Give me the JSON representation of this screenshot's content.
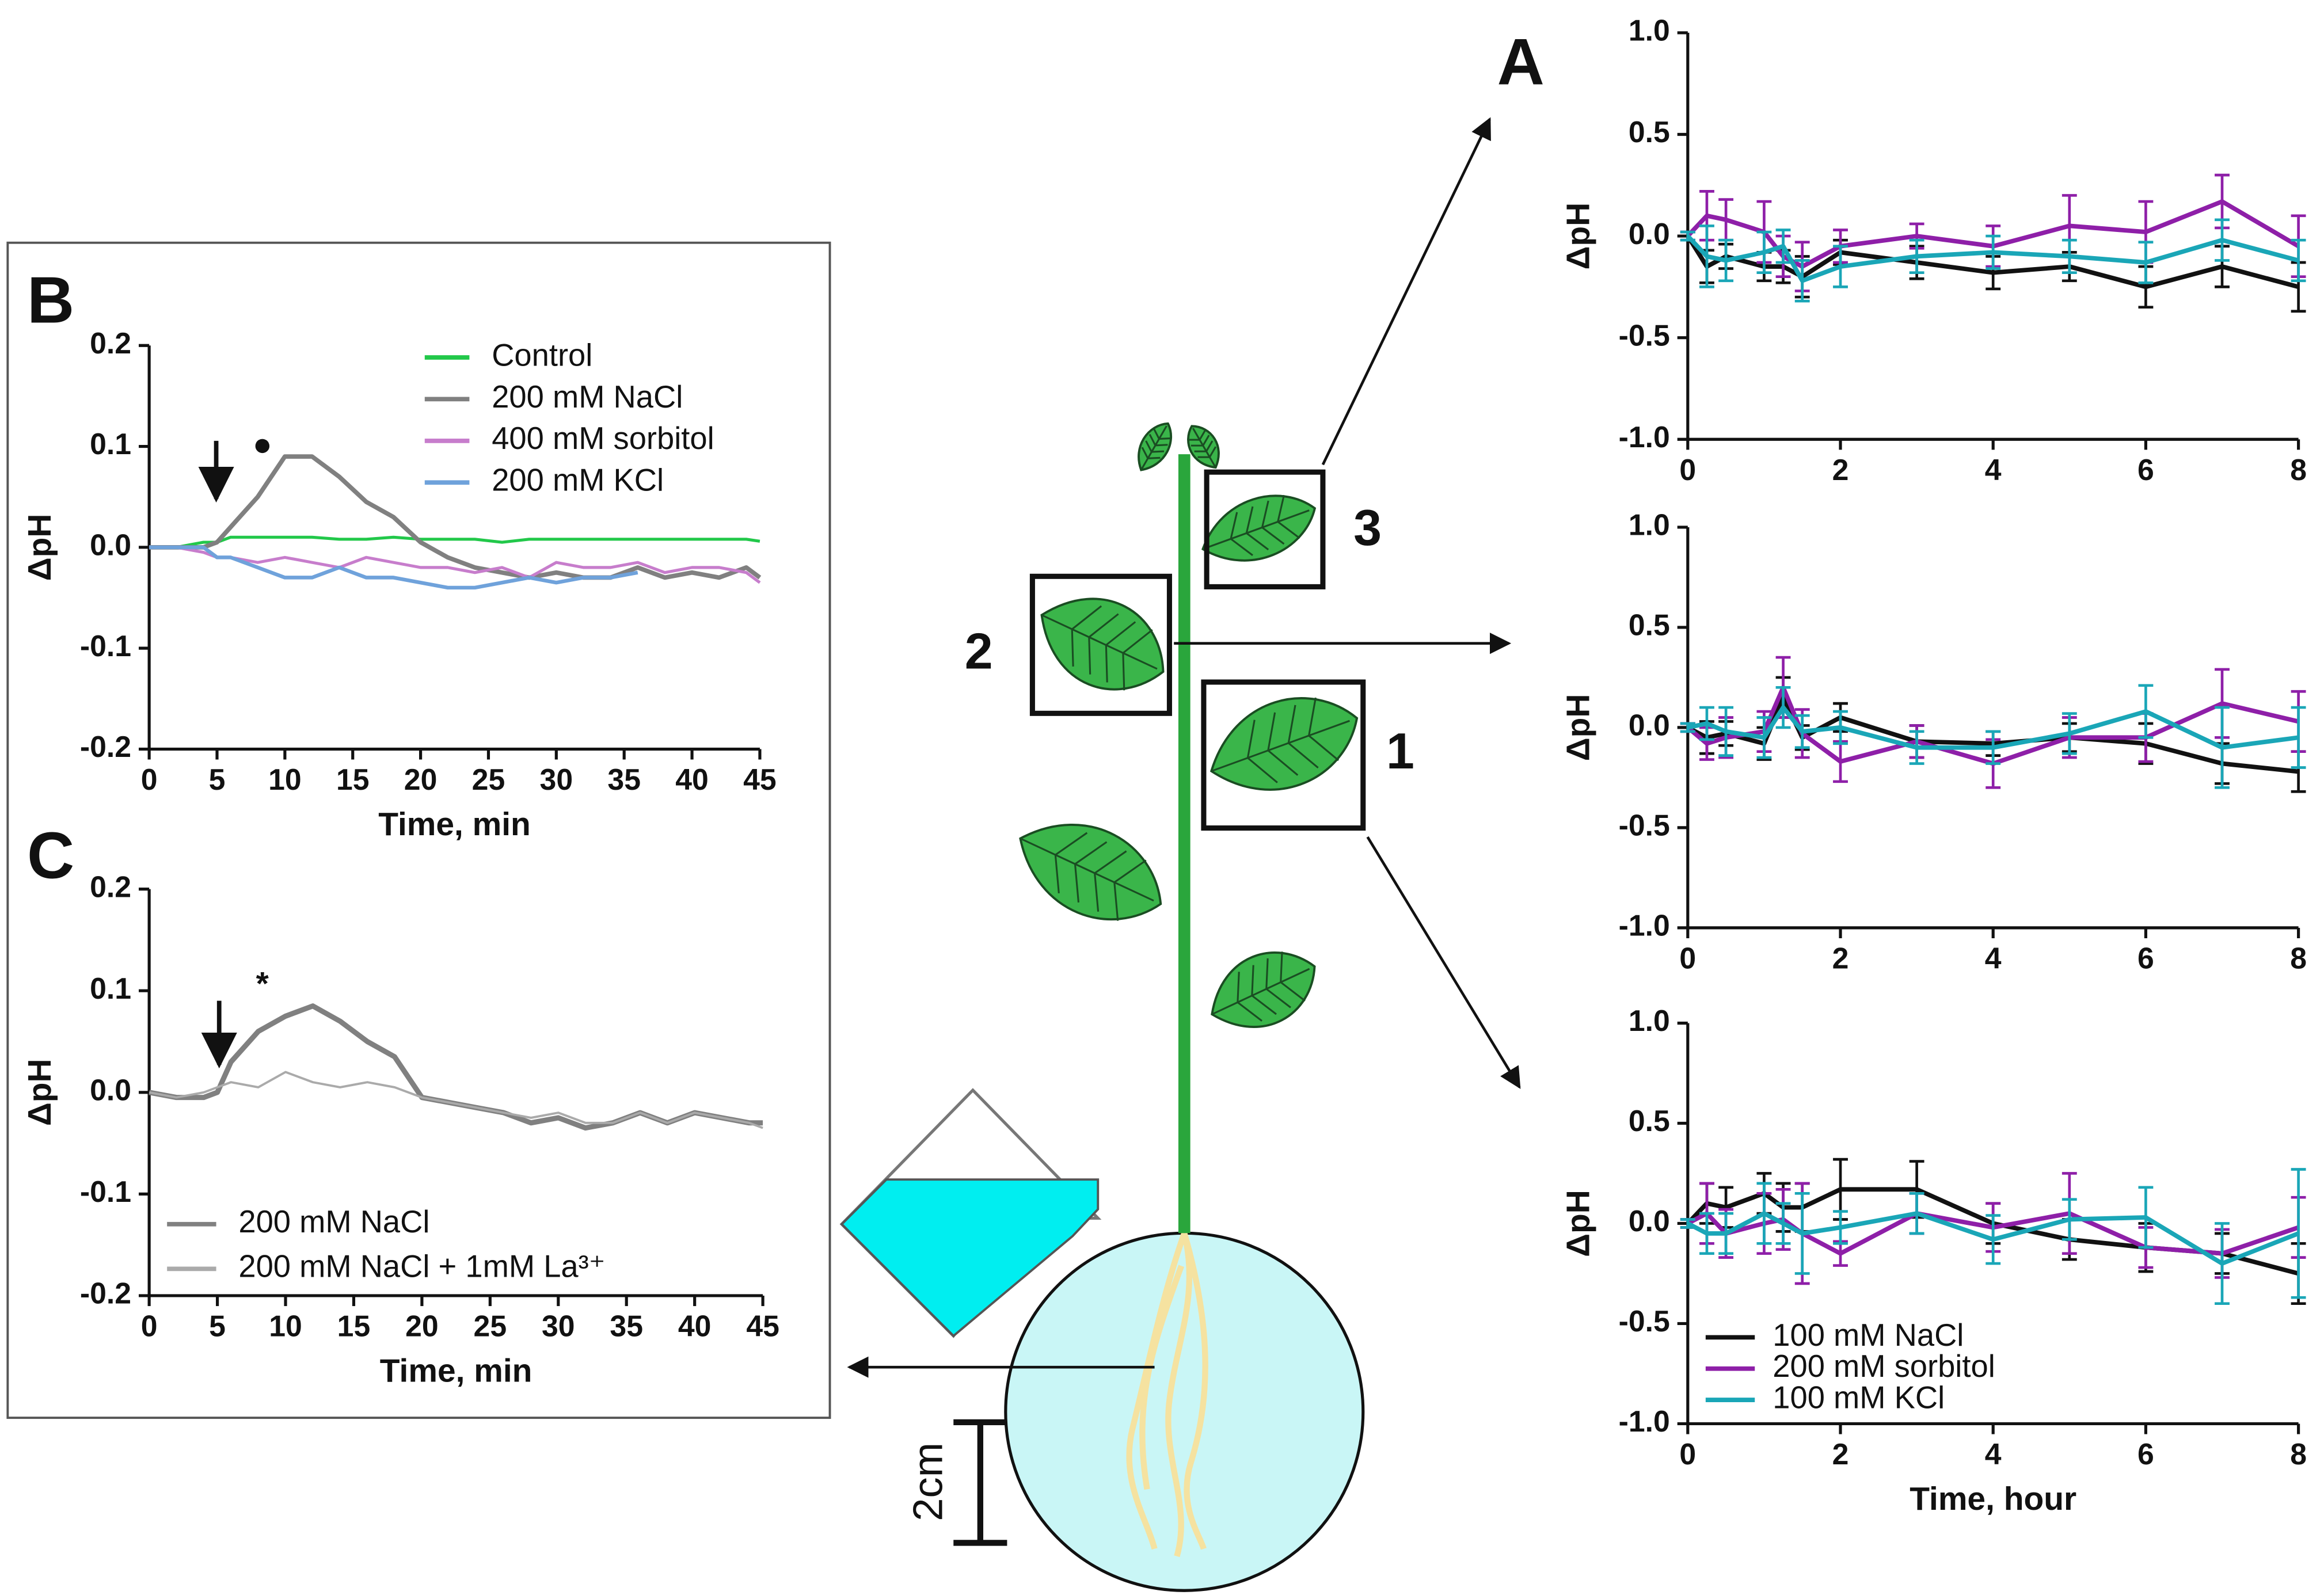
{
  "chart_data": [
    {
      "type": "line",
      "panel": "B",
      "ylabel": "ΔpH",
      "xlabel": "Time, min",
      "annotation": "●",
      "x": [
        0,
        2,
        4,
        5,
        6,
        8,
        10,
        12,
        14,
        16,
        18,
        20,
        22,
        24,
        26,
        28,
        30,
        32,
        34,
        36,
        38,
        40,
        42,
        44,
        45
      ],
      "xlim": [
        0,
        45
      ],
      "xticks": [
        0,
        5,
        10,
        15,
        20,
        25,
        30,
        35,
        40,
        45
      ],
      "ylim": [
        -0.2,
        0.2
      ],
      "yticks": [
        -0.2,
        -0.1,
        {
          "value": 0,
          "label": "0.0"
        },
        0.1,
        0.2
      ],
      "series": [
        {
          "name": "Control",
          "color": "#22c84a",
          "values": [
            0,
            0,
            0.005,
            0.005,
            0.01,
            0.01,
            0.01,
            0.01,
            0.008,
            0.008,
            0.01,
            0.008,
            0.008,
            0.008,
            0.005,
            0.008,
            0.008,
            0.008,
            0.008,
            0.008,
            0.008,
            0.008,
            0.008,
            0.008,
            0.006
          ]
        },
        {
          "name": "200 mM NaCl",
          "color": "#808080",
          "values": [
            0,
            0,
            0,
            0.005,
            0.02,
            0.05,
            0.09,
            0.09,
            0.07,
            0.045,
            0.03,
            0.005,
            -0.01,
            -0.02,
            -0.025,
            -0.03,
            -0.025,
            -0.03,
            -0.03,
            -0.02,
            -0.03,
            -0.025,
            -0.03,
            -0.02,
            -0.03
          ]
        },
        {
          "name": "400 mM sorbitol",
          "color": "#c77dcc",
          "values": [
            0,
            0,
            -0.005,
            -0.01,
            -0.01,
            -0.015,
            -0.01,
            -0.015,
            -0.02,
            -0.01,
            -0.015,
            -0.02,
            -0.02,
            -0.025,
            -0.02,
            -0.03,
            -0.015,
            -0.02,
            -0.02,
            -0.015,
            -0.025,
            -0.02,
            -0.02,
            -0.025,
            -0.035
          ]
        },
        {
          "name": "200 mM KCl",
          "color": "#6fa2db",
          "values": [
            0,
            0,
            0,
            -0.01,
            -0.01,
            -0.02,
            -0.03,
            -0.03,
            -0.02,
            -0.03,
            -0.03,
            -0.035,
            -0.04,
            -0.04,
            -0.035,
            -0.03,
            -0.035,
            -0.03,
            -0.03,
            -0.025,
            null,
            null,
            null,
            null,
            null
          ]
        }
      ]
    },
    {
      "type": "line",
      "panel": "C",
      "ylabel": "ΔpH",
      "xlabel": "Time, min",
      "annotation": "*",
      "x": [
        0,
        2,
        4,
        5,
        6,
        8,
        10,
        12,
        14,
        16,
        18,
        20,
        22,
        24,
        26,
        28,
        30,
        32,
        34,
        36,
        38,
        40,
        42,
        44,
        45
      ],
      "xlim": [
        0,
        45
      ],
      "xticks": [
        0,
        5,
        10,
        15,
        20,
        25,
        30,
        35,
        40,
        45
      ],
      "ylim": [
        -0.2,
        0.2
      ],
      "yticks": [
        -0.2,
        -0.1,
        {
          "value": 0,
          "label": "0.0"
        },
        0.1,
        0.2
      ],
      "series": [
        {
          "name": "200 mM NaCl",
          "color": "#808080",
          "values": [
            0,
            -0.005,
            -0.005,
            0,
            0.03,
            0.06,
            0.075,
            0.085,
            0.07,
            0.05,
            0.035,
            -0.005,
            -0.01,
            -0.015,
            -0.02,
            -0.03,
            -0.025,
            -0.035,
            -0.03,
            -0.02,
            -0.03,
            -0.02,
            -0.025,
            -0.03,
            -0.03
          ]
        },
        {
          "name": "200 mM NaCl + 1mM La³⁺",
          "color": "#aaaaaa",
          "values": [
            0,
            -0.005,
            0,
            0.005,
            0.01,
            0.005,
            0.02,
            0.01,
            0.005,
            0.01,
            0.005,
            -0.005,
            -0.01,
            -0.015,
            -0.02,
            -0.025,
            -0.02,
            -0.03,
            -0.03,
            -0.02,
            -0.03,
            -0.02,
            -0.025,
            -0.03,
            -0.035
          ]
        }
      ]
    },
    {
      "type": "line",
      "panel": "A",
      "ylabel": "ΔpH",
      "x": [
        0,
        0.25,
        0.5,
        1,
        1.25,
        1.5,
        2,
        3,
        4,
        5,
        6,
        7,
        8
      ],
      "xlim": [
        0,
        8
      ],
      "xticks": [
        0,
        2,
        4,
        6,
        8
      ],
      "ylim": [
        -1,
        1
      ],
      "yticks": [
        {
          "value": -1,
          "label": "-1.0"
        },
        -0.5,
        {
          "value": 0,
          "label": "0.0"
        },
        0.5,
        {
          "value": 1,
          "label": "1.0"
        }
      ],
      "series": [
        {
          "name": "100 mM NaCl",
          "color": "#111111",
          "values": [
            0,
            -0.15,
            -0.1,
            -0.15,
            -0.15,
            -0.2,
            -0.08,
            -0.13,
            -0.18,
            -0.15,
            -0.25,
            -0.15,
            -0.25
          ],
          "errors": [
            0.02,
            0.08,
            0.06,
            0.07,
            0.08,
            0.1,
            0.06,
            0.08,
            0.08,
            0.07,
            0.1,
            0.1,
            0.12
          ]
        },
        {
          "name": "200 mM sorbitol",
          "color": "#8e1fa8",
          "values": [
            0,
            0.1,
            0.08,
            0.02,
            -0.1,
            -0.15,
            -0.05,
            0,
            -0.05,
            0.05,
            0.02,
            0.17,
            -0.05
          ],
          "errors": [
            0.02,
            0.12,
            0.1,
            0.15,
            0.1,
            0.12,
            0.08,
            0.06,
            0.1,
            0.15,
            0.15,
            0.13,
            0.15
          ]
        },
        {
          "name": "100 mM KCl",
          "color": "#1aa6b7",
          "values": [
            0,
            -0.1,
            -0.12,
            -0.08,
            -0.05,
            -0.22,
            -0.15,
            -0.1,
            -0.08,
            -0.1,
            -0.13,
            -0.02,
            -0.12
          ],
          "errors": [
            0.02,
            0.15,
            0.1,
            0.1,
            0.08,
            0.1,
            0.1,
            0.08,
            0.08,
            0.08,
            0.1,
            0.1,
            0.1
          ]
        }
      ]
    },
    {
      "type": "line",
      "ylabel": "ΔpH",
      "x": [
        0,
        0.25,
        0.5,
        1,
        1.25,
        1.5,
        2,
        3,
        4,
        5,
        6,
        7,
        8
      ],
      "xlim": [
        0,
        8
      ],
      "xticks": [
        0,
        2,
        4,
        6,
        8
      ],
      "ylim": [
        -1,
        1
      ],
      "yticks": [
        {
          "value": -1,
          "label": "-1.0"
        },
        -0.5,
        {
          "value": 0,
          "label": "0.0"
        },
        0.5,
        {
          "value": 1,
          "label": "1.0"
        }
      ],
      "series": [
        {
          "name": "100 mM NaCl",
          "color": "#111111",
          "values": [
            0,
            -0.05,
            -0.03,
            -0.08,
            0.15,
            -0.05,
            0.05,
            -0.07,
            -0.08,
            -0.05,
            -0.08,
            -0.18,
            -0.22
          ],
          "errors": [
            0.02,
            0.08,
            0.06,
            0.08,
            0.1,
            0.06,
            0.07,
            0.08,
            0.06,
            0.07,
            0.1,
            0.1,
            0.1
          ]
        },
        {
          "name": "200 mM sorbitol",
          "color": "#8e1fa8",
          "values": [
            0,
            -0.08,
            -0.05,
            -0.02,
            0.2,
            -0.03,
            -0.17,
            -0.07,
            -0.18,
            -0.05,
            -0.05,
            0.12,
            0.03
          ],
          "errors": [
            0.02,
            0.08,
            0.1,
            0.1,
            0.15,
            0.12,
            0.1,
            0.08,
            0.12,
            0.1,
            0.12,
            0.17,
            0.15
          ]
        },
        {
          "name": "100 mM KCl",
          "color": "#1aa6b7",
          "values": [
            0,
            0.02,
            -0.02,
            -0.05,
            0.1,
            -0.02,
            0,
            -0.1,
            -0.1,
            -0.03,
            0.08,
            -0.1,
            -0.05
          ],
          "errors": [
            0.02,
            0.08,
            0.12,
            0.1,
            0.1,
            0.08,
            0.08,
            0.08,
            0.08,
            0.1,
            0.13,
            0.2,
            0.15
          ]
        }
      ]
    },
    {
      "type": "line",
      "ylabel": "ΔpH",
      "xlabel": "Time, hour",
      "x": [
        0,
        0.25,
        0.5,
        1,
        1.25,
        1.5,
        2,
        3,
        4,
        5,
        6,
        7,
        8
      ],
      "xlim": [
        0,
        8
      ],
      "xticks": [
        0,
        2,
        4,
        6,
        8
      ],
      "ylim": [
        -1,
        1
      ],
      "yticks": [
        {
          "value": -1,
          "label": "-1.0"
        },
        -0.5,
        {
          "value": 0,
          "label": "0.0"
        },
        0.5,
        {
          "value": 1,
          "label": "1.0"
        }
      ],
      "series": [
        {
          "name": "100 mM NaCl",
          "color": "#111111",
          "values": [
            0,
            0.1,
            0.08,
            0.15,
            0.08,
            0.08,
            0.17,
            0.17,
            0,
            -0.08,
            -0.12,
            -0.15,
            -0.25
          ],
          "errors": [
            0.02,
            0.1,
            0.1,
            0.1,
            0.12,
            0.12,
            0.15,
            0.14,
            0.1,
            0.1,
            0.12,
            0.1,
            0.15
          ]
        },
        {
          "name": "200 mM sorbitol",
          "color": "#8e1fa8",
          "values": [
            0,
            0.05,
            -0.05,
            0,
            0.02,
            -0.05,
            -0.15,
            0.05,
            -0.02,
            0.05,
            -0.12,
            -0.15,
            -0.02
          ],
          "errors": [
            0.02,
            0.15,
            0.12,
            0.15,
            0.15,
            0.25,
            0.06,
            0.1,
            0.12,
            0.2,
            0.1,
            0.12,
            0.15
          ]
        },
        {
          "name": "100 mM KCl",
          "color": "#1aa6b7",
          "values": [
            0,
            -0.05,
            -0.05,
            0.05,
            0,
            -0.05,
            -0.02,
            0.05,
            -0.08,
            0.02,
            0.03,
            -0.2,
            -0.05
          ],
          "errors": [
            0.02,
            0.1,
            0.1,
            0.15,
            0.1,
            0.2,
            0.08,
            0.1,
            0.12,
            0.1,
            0.15,
            0.2,
            0.32
          ]
        }
      ]
    }
  ],
  "diagram": {
    "leaf_labels": [
      "1",
      "2",
      "3"
    ],
    "scale_bar": "2cm"
  }
}
